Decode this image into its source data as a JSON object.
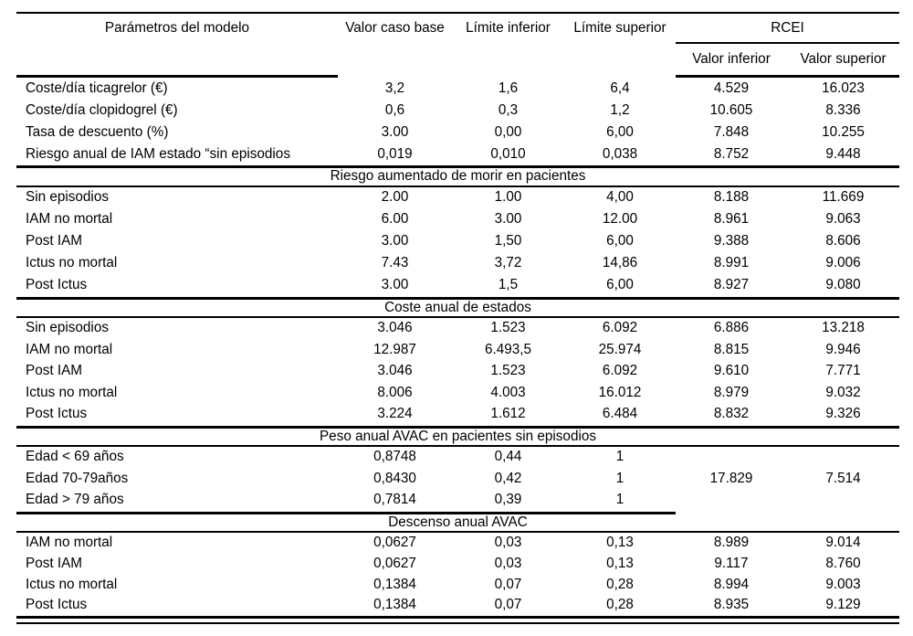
{
  "table": {
    "headers": {
      "col1": "Parámetros del modelo",
      "col2": "Valor caso base",
      "col3": "Límite inferior",
      "col4": "Límite superior",
      "rcei": "RCEI",
      "rcei_sub1": "Valor inferior",
      "rcei_sub2": "Valor superior"
    },
    "sections": [
      {
        "title": null,
        "rule_before": "none",
        "rows": [
          [
            "Coste/día ticagrelor (€)",
            "3,2",
            "1,6",
            "6,4",
            "4.529",
            "16.023"
          ],
          [
            "Coste/día clopidogrel (€)",
            "0,6",
            "0,3",
            "1,2",
            "10.605",
            "8.336"
          ],
          [
            "Tasa de descuento (%)",
            "3.00",
            "0,00",
            "6,00",
            "7.848",
            "10.255"
          ],
          [
            "Riesgo anual de IAM estado “sin episodios",
            "0,019",
            "0,010",
            "0,038",
            "8.752",
            "9.448"
          ]
        ]
      },
      {
        "title": "Riesgo aumentado de morir en pacientes",
        "rule_before": "full",
        "rows": [
          [
            "Sin episodios",
            "2.00",
            "1.00",
            "4,00",
            "8.188",
            "11.669"
          ],
          [
            "IAM no mortal",
            "6.00",
            "3.00",
            "12.00",
            "8.961",
            "9.063"
          ],
          [
            "Post IAM",
            "3.00",
            "1,50",
            "6,00",
            "9.388",
            "8.606"
          ],
          [
            "Ictus no mortal",
            "7.43",
            "3,72",
            "14,86",
            "8.991",
            "9.006"
          ],
          [
            "Post Ictus",
            "3.00",
            "1,5",
            "6,00",
            "8.927",
            "9.080"
          ]
        ]
      },
      {
        "title": "Coste anual de estados",
        "rule_before": "full",
        "rows": [
          [
            "Sin episodios",
            "3.046",
            "1.523",
            "6.092",
            "6.886",
            "13.218"
          ],
          [
            "IAM no mortal",
            "12.987",
            "6.493,5",
            "25.974",
            "8.815",
            "9.946"
          ],
          [
            "Post IAM",
            "3.046",
            "1.523",
            "6.092",
            "9.610",
            "7.771"
          ],
          [
            "Ictus no mortal",
            "8.006",
            "4.003",
            "16.012",
            "8.979",
            "9.032"
          ],
          [
            "Post Ictus",
            "3.224",
            "1.612",
            "6.484",
            "8.832",
            "9.326"
          ]
        ]
      },
      {
        "title": "Peso anual AVAC en pacientes sin episodios",
        "rule_before": "full",
        "rows": [
          [
            "Edad < 69 años",
            "0,8748",
            "0,44",
            "1",
            "",
            ""
          ],
          [
            "Edad 70-79años",
            "0,8430",
            "0,42",
            "1",
            "17.829",
            "7.514"
          ],
          [
            "Edad > 79 años",
            "0,7814",
            "0,39",
            "1",
            "",
            ""
          ]
        ]
      },
      {
        "title": "Descenso anual AVAC",
        "rule_before": "partial",
        "rows": [
          [
            "IAM no mortal",
            "0,0627",
            "0,03",
            "0,13",
            "8.989",
            "9.014"
          ],
          [
            "Post IAM",
            "0,0627",
            "0,03",
            "0,13",
            "9.117",
            "8.760"
          ],
          [
            "Ictus no mortal",
            "0,1384",
            "0,07",
            "0,28",
            "8.994",
            "9.003"
          ],
          [
            "Post Ictus",
            "0,1384",
            "0,07",
            "0,28",
            "8.935",
            "9.129"
          ]
        ]
      }
    ]
  }
}
